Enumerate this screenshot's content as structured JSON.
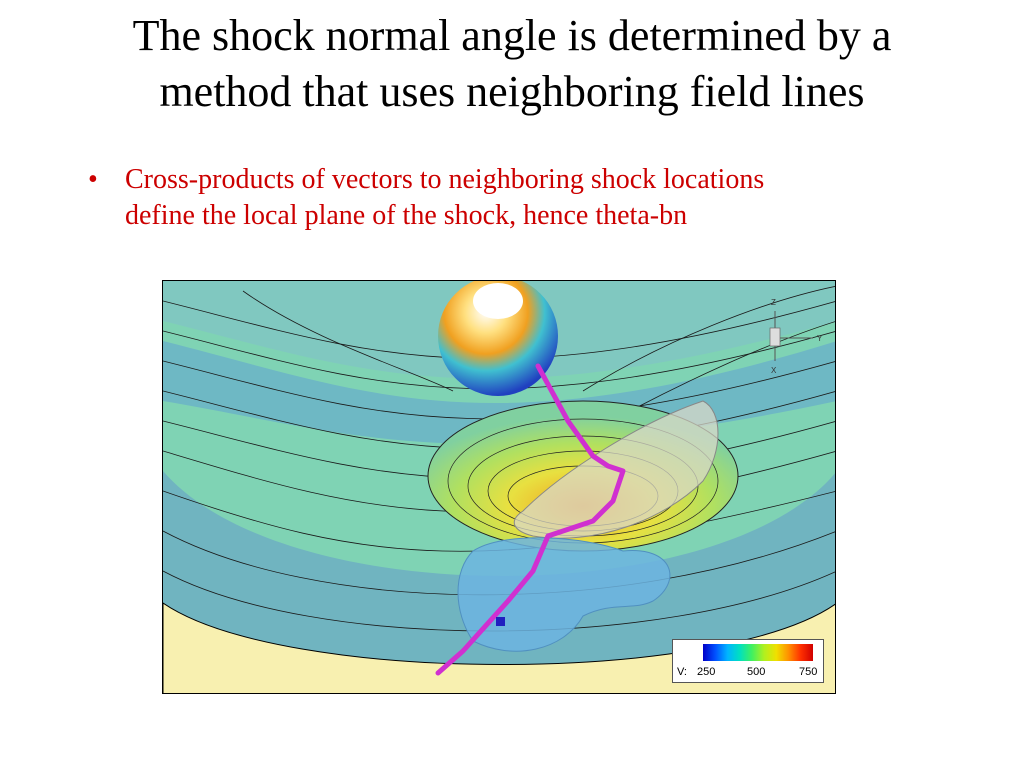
{
  "slide": {
    "title_lines": [
      "The shock normal angle is determined by a",
      "method that uses neighboring field lines"
    ],
    "bullets": [
      {
        "lines": [
          "Cross-products of vectors to neighboring shock locations",
          "define the local plane of the shock, hence theta-bn"
        ]
      }
    ],
    "bullet_symbol": "•"
  },
  "figure": {
    "axis_labels": {
      "z": "Z",
      "y": "Y",
      "x": "X"
    },
    "legend": {
      "variable": "V:",
      "ticks": [
        "250",
        "500",
        "750"
      ]
    },
    "colors": {
      "field_line": "#d030d0",
      "marker": "#2020c0",
      "background_teal": "#7fd3b4",
      "sun_yellow": "#f5e6a0"
    }
  }
}
